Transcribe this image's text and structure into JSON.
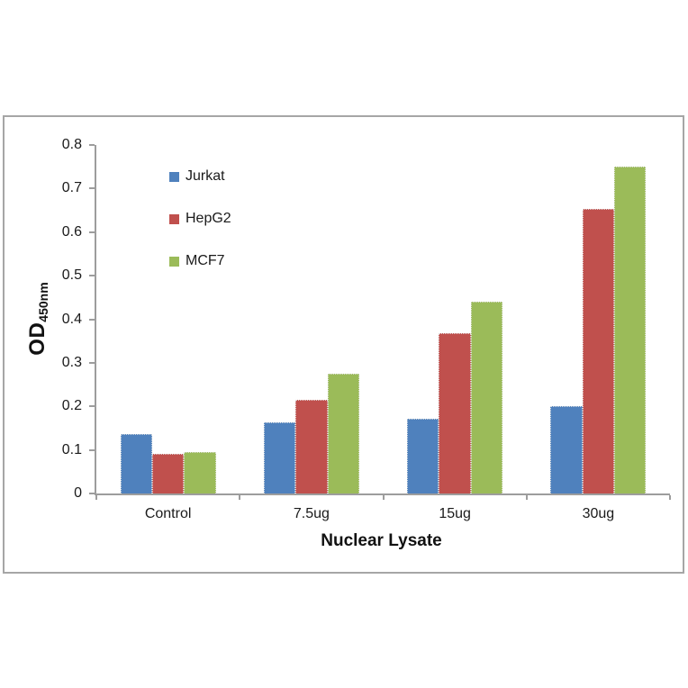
{
  "chart_data": {
    "type": "bar",
    "title": "",
    "categories": [
      "Control",
      "7.5ug",
      "15ug",
      "30ug"
    ],
    "series": [
      {
        "name": "Jurkat",
        "color": "#4f81bd",
        "values": [
          0.137,
          0.163,
          0.171,
          0.2
        ]
      },
      {
        "name": "HepG2",
        "color": "#c0504d",
        "values": [
          0.092,
          0.214,
          0.369,
          0.654
        ]
      },
      {
        "name": "MCF7",
        "color": "#9bbb59",
        "values": [
          0.096,
          0.276,
          0.441,
          0.75
        ]
      }
    ],
    "xlabel": "Nuclear Lysate",
    "ylabel_main": "OD",
    "ylabel_sub": "450nm",
    "ylim": [
      0,
      0.8
    ],
    "ytick_step": 0.1,
    "yticks": [
      "0.8",
      "0.7",
      "0.6",
      "0.5",
      "0.4",
      "0.3",
      "0.2",
      "0.1",
      "0"
    ],
    "grid": false,
    "legend_position": "inside-top-left",
    "gap_width_percent": 150
  },
  "colors": {
    "axis": "#9d9d9d",
    "chart_border": "#a6a6a6",
    "text": "#1a1a1a",
    "background": "#ffffff"
  }
}
